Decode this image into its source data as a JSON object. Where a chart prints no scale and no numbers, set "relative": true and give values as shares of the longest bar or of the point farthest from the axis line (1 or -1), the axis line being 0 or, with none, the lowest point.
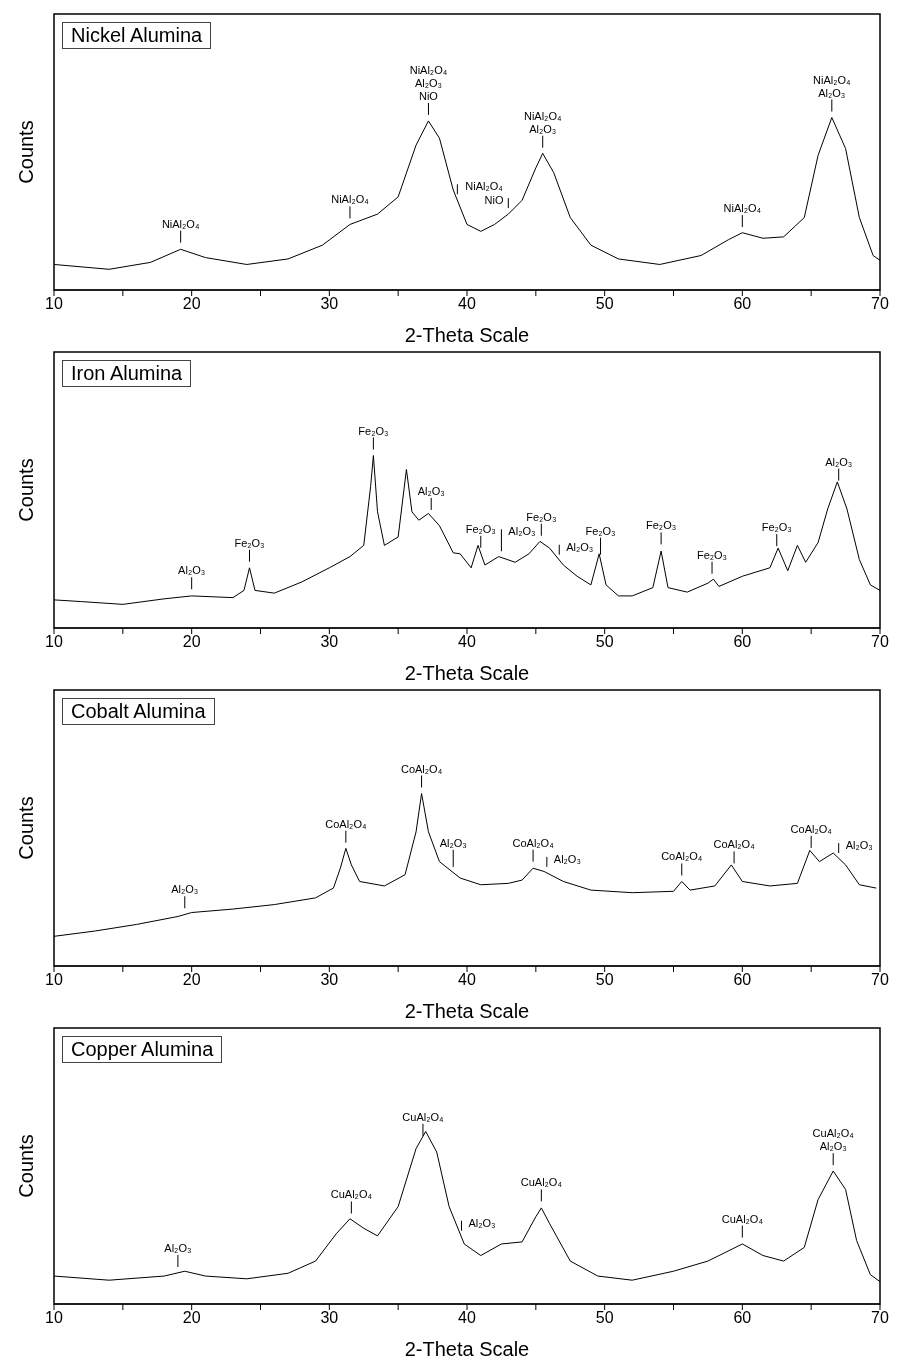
{
  "chart_data": [
    {
      "type": "line",
      "title": "Nickel Alumina",
      "xlabel": "2-Theta Scale",
      "ylabel": "Counts",
      "relative": true,
      "xlim": [
        10,
        70
      ],
      "xticks": [
        10,
        {
          "value": 15,
          "label": null
        },
        20,
        {
          "value": 25,
          "label": null
        },
        30,
        {
          "value": 35,
          "label": null
        },
        40,
        {
          "value": 45,
          "label": null
        },
        50,
        {
          "value": 55,
          "label": null
        },
        60,
        {
          "value": 65,
          "label": null
        },
        70
      ],
      "x": [
        10,
        14,
        17,
        19.2,
        21,
        24,
        27,
        29.5,
        31.5,
        33.5,
        35,
        36.3,
        37.2,
        38,
        39,
        40,
        41,
        42,
        43,
        44,
        45,
        45.5,
        46.3,
        47.5,
        49,
        51,
        54,
        57,
        59,
        60,
        61.5,
        63,
        64.5,
        65.5,
        66.5,
        67.5,
        68.5,
        69.5,
        70
      ],
      "series": [
        {
          "color": "#000000",
          "values": [
            0.148,
            0.12,
            0.16,
            0.236,
            0.188,
            0.148,
            0.18,
            0.26,
            0.38,
            0.44,
            0.54,
            0.84,
            0.98,
            0.88,
            0.58,
            0.38,
            0.34,
            0.38,
            0.44,
            0.52,
            0.708,
            0.792,
            0.68,
            0.42,
            0.26,
            0.18,
            0.148,
            0.2,
            0.292,
            0.332,
            0.3,
            0.308,
            0.42,
            0.78,
            1.0,
            0.82,
            0.42,
            0.2,
            0.172
          ]
        }
      ],
      "annotations": [
        {
          "text": "NiAl₂O₄",
          "x": 19.2,
          "y": 0.24
        },
        {
          "text": "NiAl₂O₄",
          "x": 31.5,
          "y": 0.38
        },
        {
          "text": "NiAl₂O₄\nAl₂O₃\nNiO",
          "x": 37.2,
          "y": 0.98
        },
        {
          "text": "NiAl₂O₄",
          "x": 39.3,
          "y": 0.52
        },
        {
          "text": "NiO",
          "x": 43,
          "y": 0.44
        },
        {
          "text": "NiAl₂O₄\nAl₂O₃",
          "x": 45.5,
          "y": 0.79
        },
        {
          "text": "NiAl₂O₄",
          "x": 60,
          "y": 0.33
        },
        {
          "text": "NiAl₂O₄\nAl₂O₃",
          "x": 66.5,
          "y": 1.0
        }
      ]
    },
    {
      "type": "line",
      "title": "Iron Alumina",
      "xlabel": "2-Theta Scale",
      "ylabel": "Counts",
      "relative": true,
      "xlim": [
        10,
        70
      ],
      "xticks": [
        10,
        {
          "value": 15,
          "label": null
        },
        20,
        {
          "value": 25,
          "label": null
        },
        30,
        {
          "value": 35,
          "label": null
        },
        40,
        {
          "value": 45,
          "label": null
        },
        50,
        {
          "value": 55,
          "label": null
        },
        60,
        {
          "value": 65,
          "label": null
        },
        70
      ],
      "x": [
        10,
        12,
        15,
        18,
        20,
        23,
        23.8,
        24.2,
        24.6,
        26,
        28,
        30,
        31.5,
        32.5,
        33.0,
        33.2,
        33.5,
        34,
        35,
        35.6,
        36,
        36.5,
        37.2,
        38,
        39,
        39.5,
        40.3,
        40.8,
        41.3,
        42.3,
        43.5,
        44.5,
        45.3,
        46,
        47,
        48,
        49,
        49.6,
        50.1,
        51,
        52,
        53.5,
        54.1,
        54.6,
        56,
        57.5,
        57.9,
        58.3,
        60,
        62,
        62.6,
        63.3,
        64,
        64.6,
        65.5,
        66.2,
        66.9,
        67.6,
        68.5,
        69.3,
        70
      ],
      "series": [
        {
          "color": "#000000",
          "values": [
            0.163,
            0.153,
            0.137,
            0.169,
            0.186,
            0.176,
            0.218,
            0.349,
            0.218,
            0.202,
            0.267,
            0.349,
            0.414,
            0.479,
            0.821,
            1.0,
            0.674,
            0.479,
            0.528,
            0.919,
            0.674,
            0.625,
            0.664,
            0.593,
            0.436,
            0.43,
            0.349,
            0.479,
            0.365,
            0.414,
            0.381,
            0.43,
            0.502,
            0.463,
            0.365,
            0.3,
            0.25,
            0.43,
            0.25,
            0.186,
            0.186,
            0.234,
            0.446,
            0.234,
            0.208,
            0.26,
            0.283,
            0.241,
            0.3,
            0.349,
            0.463,
            0.332,
            0.479,
            0.381,
            0.495,
            0.69,
            0.847,
            0.69,
            0.397,
            0.25,
            0.218
          ]
        }
      ],
      "annotations": [
        {
          "text": "Al₂O₃",
          "x": 20,
          "y": 0.19
        },
        {
          "text": "Fe₂O₃",
          "x": 24.2,
          "y": 0.35
        },
        {
          "text": "Fe₂O₃",
          "x": 33.2,
          "y": 1.0
        },
        {
          "text": "Al₂O₃",
          "x": 37.4,
          "y": 0.65
        },
        {
          "text": "Fe₂O₃",
          "x": 41,
          "y": 0.43
        },
        {
          "text": "Al₂O₃",
          "x": 42.5,
          "y": 0.41
        },
        {
          "text": "Fe₂O₃",
          "x": 45.4,
          "y": 0.5
        },
        {
          "text": "Al₂O₃",
          "x": 46.7,
          "y": 0.39
        },
        {
          "text": "Fe₂O₃",
          "x": 49.7,
          "y": 0.39
        },
        {
          "text": "Fe₂O₃",
          "x": 54.1,
          "y": 0.45
        },
        {
          "text": "Fe₂O₃",
          "x": 57.8,
          "y": 0.28
        },
        {
          "text": "Fe₂O₃",
          "x": 62.5,
          "y": 0.44
        },
        {
          "text": "Al₂O₃",
          "x": 67,
          "y": 0.82
        }
      ]
    },
    {
      "type": "line",
      "title": "Cobalt Alumina",
      "xlabel": "2-Theta Scale",
      "ylabel": "Counts",
      "relative": true,
      "xlim": [
        10,
        70
      ],
      "xticks": [
        10,
        {
          "value": 15,
          "label": null
        },
        20,
        {
          "value": 25,
          "label": null
        },
        30,
        {
          "value": 35,
          "label": null
        },
        40,
        {
          "value": 45,
          "label": null
        },
        50,
        {
          "value": 55,
          "label": null
        },
        60,
        {
          "value": 65,
          "label": null
        },
        70
      ],
      "x": [
        10,
        13,
        16,
        19,
        20,
        23,
        26,
        29,
        30.3,
        30.8,
        31.2,
        31.6,
        32.2,
        34,
        35.5,
        36.3,
        36.7,
        37.2,
        38,
        39.5,
        41,
        43,
        44,
        44.8,
        45.6,
        47,
        49,
        52,
        55,
        55.6,
        56.2,
        58,
        59.2,
        60,
        62,
        64,
        64.9,
        65.6,
        66.6,
        67.5,
        68.5,
        69.7
      ],
      "series": [
        {
          "color": "#000000",
          "values": [
            0.172,
            0.203,
            0.241,
            0.287,
            0.31,
            0.33,
            0.356,
            0.395,
            0.452,
            0.567,
            0.682,
            0.586,
            0.49,
            0.464,
            0.529,
            0.778,
            1.0,
            0.778,
            0.605,
            0.51,
            0.471,
            0.479,
            0.498,
            0.567,
            0.548,
            0.49,
            0.44,
            0.425,
            0.433,
            0.49,
            0.44,
            0.464,
            0.586,
            0.49,
            0.464,
            0.479,
            0.67,
            0.605,
            0.655,
            0.586,
            0.471,
            0.452
          ]
        }
      ],
      "annotations": [
        {
          "text": "Al₂O₃",
          "x": 19.5,
          "y": 0.3
        },
        {
          "text": "CoAl₂O₄",
          "x": 31.2,
          "y": 0.68
        },
        {
          "text": "CoAl₂O₄",
          "x": 36.7,
          "y": 1.0
        },
        {
          "text": "Al₂O₃",
          "x": 39,
          "y": 0.54
        },
        {
          "text": "CoAl₂O₄",
          "x": 44.8,
          "y": 0.57
        },
        {
          "text": "Al₂O₃",
          "x": 45.8,
          "y": 0.54
        },
        {
          "text": "CoAl₂O₄",
          "x": 55.6,
          "y": 0.49
        },
        {
          "text": "CoAl₂O₄",
          "x": 59.4,
          "y": 0.56
        },
        {
          "text": "CoAl₂O₄",
          "x": 65,
          "y": 0.65
        },
        {
          "text": "Al₂O₃",
          "x": 67,
          "y": 0.62
        }
      ]
    },
    {
      "type": "line",
      "title": "Copper Alumina",
      "xlabel": "2-Theta Scale",
      "ylabel": "Counts",
      "relative": true,
      "xlim": [
        10,
        70
      ],
      "xticks": [
        10,
        {
          "value": 15,
          "label": null
        },
        20,
        {
          "value": 25,
          "label": null
        },
        30,
        {
          "value": 35,
          "label": null
        },
        40,
        {
          "value": 45,
          "label": null
        },
        50,
        {
          "value": 55,
          "label": null
        },
        60,
        {
          "value": 65,
          "label": null
        },
        70
      ],
      "x": [
        10,
        14,
        18,
        19.5,
        21,
        24,
        27,
        29,
        30.5,
        31.5,
        32.5,
        33.5,
        35,
        36.3,
        37,
        37.8,
        38.7,
        39.8,
        41,
        42.5,
        44,
        45,
        45.4,
        46,
        47.5,
        49.5,
        52,
        55,
        57.5,
        60,
        61.5,
        63,
        64.5,
        65.5,
        66.6,
        67.5,
        68.3,
        69.3,
        70
      ],
      "series": [
        {
          "color": "#000000",
          "values": [
            0.162,
            0.138,
            0.162,
            0.19,
            0.162,
            0.146,
            0.178,
            0.249,
            0.407,
            0.494,
            0.439,
            0.395,
            0.565,
            0.901,
            1.0,
            0.881,
            0.565,
            0.348,
            0.281,
            0.348,
            0.36,
            0.506,
            0.557,
            0.466,
            0.249,
            0.162,
            0.138,
            0.19,
            0.249,
            0.348,
            0.281,
            0.249,
            0.328,
            0.605,
            0.771,
            0.664,
            0.368,
            0.17,
            0.13
          ]
        }
      ],
      "annotations": [
        {
          "text": "Al₂O₃",
          "x": 19,
          "y": 0.18
        },
        {
          "text": "CuAl₂O₄",
          "x": 31.6,
          "y": 0.49
        },
        {
          "text": "CuAl₂O₄",
          "x": 36.8,
          "y": 0.94
        },
        {
          "text": "Al₂O₃",
          "x": 39.6,
          "y": 0.39
        },
        {
          "text": "CuAl₂O₄",
          "x": 45.4,
          "y": 0.56
        },
        {
          "text": "CuAl₂O₄",
          "x": 60,
          "y": 0.35
        },
        {
          "text": "CuAl₂O₄\nAl₂O₃",
          "x": 66.6,
          "y": 0.77
        }
      ]
    }
  ]
}
